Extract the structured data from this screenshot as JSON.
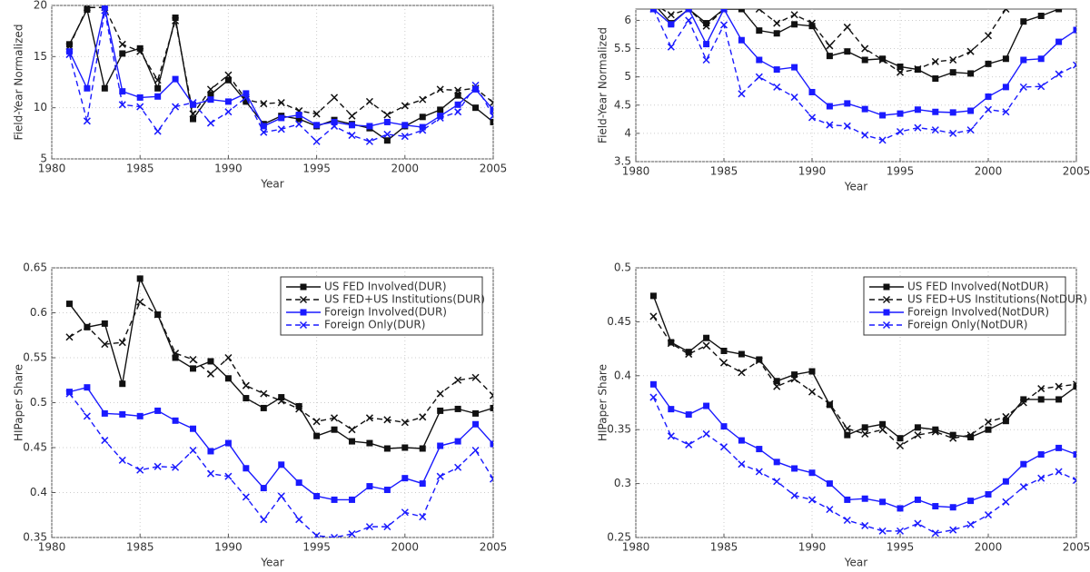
{
  "chart_data": [
    {
      "type": "line",
      "ylabel": "Field-Year Normalized",
      "xlabel": "Year",
      "x": [
        1981,
        1982,
        1983,
        1984,
        1985,
        1986,
        1987,
        1988,
        1989,
        1990,
        1991,
        1992,
        1993,
        1994,
        1995,
        1996,
        1997,
        1998,
        1999,
        2000,
        2001,
        2002,
        2003,
        2004,
        2005
      ],
      "xlim": [
        1980,
        2005
      ],
      "xticks": [
        1980,
        1985,
        1990,
        1995,
        2000,
        2005
      ],
      "ylim": [
        5,
        20
      ],
      "yticks": [
        5,
        10,
        15,
        20
      ],
      "grid": true,
      "series": [
        {
          "color": "#111111",
          "line_style": "solid",
          "marker": "square",
          "values": [
            16.2,
            19.6,
            11.9,
            15.3,
            15.8,
            11.9,
            18.8,
            8.9,
            11.3,
            12.7,
            10.6,
            8.4,
            9.2,
            8.9,
            8.2,
            8.8,
            8.4,
            8.0,
            6.8,
            8.2,
            9.1,
            9.8,
            11.2,
            10.0,
            8.6
          ]
        },
        {
          "color": "#111111",
          "line_style": "dashed",
          "marker": "x",
          "values": [
            16.0,
            19.8,
            19.8,
            16.2,
            15.5,
            12.7,
            18.5,
            9.4,
            11.8,
            13.2,
            10.8,
            10.4,
            10.5,
            9.7,
            9.4,
            11.0,
            9.2,
            10.6,
            9.3,
            10.2,
            10.8,
            11.8,
            11.7,
            11.9,
            10.5
          ]
        },
        {
          "color": "#1a1aff",
          "line_style": "solid",
          "marker": "square",
          "values": [
            15.5,
            11.9,
            19.8,
            11.6,
            11.0,
            11.1,
            12.8,
            10.3,
            10.8,
            10.6,
            11.4,
            8.2,
            9.0,
            9.3,
            8.3,
            8.6,
            8.3,
            8.2,
            8.6,
            8.3,
            8.1,
            9.2,
            10.3,
            11.8,
            9.8
          ]
        },
        {
          "color": "#1a1aff",
          "line_style": "dashed",
          "marker": "x",
          "values": [
            15.2,
            8.7,
            19.5,
            10.3,
            10.1,
            7.7,
            10.1,
            10.5,
            8.5,
            9.6,
            11.0,
            7.6,
            7.9,
            8.4,
            6.7,
            8.2,
            7.3,
            6.7,
            7.4,
            7.2,
            7.8,
            9.0,
            9.6,
            12.2,
            9.2
          ]
        }
      ]
    },
    {
      "type": "line",
      "ylabel": "Field-Year Normalized",
      "xlabel": "Year",
      "x": [
        1981,
        1982,
        1983,
        1984,
        1985,
        1986,
        1987,
        1988,
        1989,
        1990,
        1991,
        1992,
        1993,
        1994,
        1995,
        1996,
        1997,
        1998,
        1999,
        2000,
        2001,
        2002,
        2003,
        2004,
        2005
      ],
      "xlim": [
        1980,
        2005
      ],
      "xticks": [
        1980,
        1985,
        1990,
        1995,
        2000,
        2005
      ],
      "ylim": [
        3.5,
        6.2
      ],
      "yticks": [
        3.5,
        4,
        4.5,
        5,
        5.5,
        6
      ],
      "grid": true,
      "series": [
        {
          "color": "#111111",
          "line_style": "solid",
          "marker": "square",
          "values": [
            6.3,
            5.95,
            6.2,
            5.95,
            6.2,
            6.2,
            5.82,
            5.77,
            5.93,
            5.9,
            5.37,
            5.45,
            5.3,
            5.32,
            5.18,
            5.13,
            4.97,
            5.08,
            5.06,
            5.23,
            5.32,
            5.98,
            6.08,
            6.2,
            6.25
          ]
        },
        {
          "color": "#111111",
          "line_style": "dashed",
          "marker": "x",
          "values": [
            6.3,
            6.1,
            6.2,
            5.9,
            6.2,
            6.3,
            6.2,
            5.95,
            6.1,
            5.95,
            5.55,
            5.88,
            5.5,
            5.3,
            5.08,
            5.14,
            5.27,
            5.3,
            5.45,
            5.73,
            6.2,
            6.3,
            6.3,
            6.3,
            6.3
          ]
        },
        {
          "color": "#1a1aff",
          "line_style": "solid",
          "marker": "square",
          "values": [
            6.2,
            5.93,
            6.2,
            5.58,
            6.2,
            5.65,
            5.3,
            5.13,
            5.17,
            4.73,
            4.48,
            4.53,
            4.43,
            4.32,
            4.35,
            4.42,
            4.38,
            4.37,
            4.4,
            4.65,
            4.82,
            5.3,
            5.32,
            5.62,
            5.83
          ]
        },
        {
          "color": "#1a1aff",
          "line_style": "dashed",
          "marker": "x",
          "values": [
            6.2,
            5.53,
            6.0,
            5.3,
            5.92,
            4.7,
            5.0,
            4.82,
            4.64,
            4.28,
            4.15,
            4.13,
            3.97,
            3.88,
            4.03,
            4.1,
            4.06,
            4.0,
            4.06,
            4.42,
            4.38,
            4.82,
            4.83,
            5.05,
            5.21
          ]
        }
      ]
    },
    {
      "type": "line",
      "ylabel": "HIPaper Share",
      "xlabel": "Year",
      "x": [
        1981,
        1982,
        1983,
        1984,
        1985,
        1986,
        1987,
        1988,
        1989,
        1990,
        1991,
        1992,
        1993,
        1994,
        1995,
        1996,
        1997,
        1998,
        1999,
        2000,
        2001,
        2002,
        2003,
        2004,
        2005
      ],
      "xlim": [
        1980,
        2005
      ],
      "xticks": [
        1980,
        1985,
        1990,
        1995,
        2000,
        2005
      ],
      "ylim": [
        0.35,
        0.65
      ],
      "yticks": [
        0.35,
        0.4,
        0.45,
        0.5,
        0.55,
        0.6,
        0.65
      ],
      "grid": true,
      "legend": "upper right",
      "series": [
        {
          "name": "US FED Involved(DUR)",
          "color": "#111111",
          "line_style": "solid",
          "marker": "square",
          "values": [
            0.61,
            0.584,
            0.588,
            0.521,
            0.638,
            0.598,
            0.55,
            0.538,
            0.546,
            0.527,
            0.505,
            0.494,
            0.506,
            0.496,
            0.463,
            0.47,
            0.457,
            0.455,
            0.449,
            0.45,
            0.449,
            0.491,
            0.493,
            0.488,
            0.494
          ]
        },
        {
          "name": "US FED+US Institutions(DUR)",
          "color": "#111111",
          "line_style": "dashed",
          "marker": "x",
          "values": [
            0.573,
            0.585,
            0.565,
            0.567,
            0.612,
            0.598,
            0.555,
            0.548,
            0.532,
            0.55,
            0.519,
            0.51,
            0.502,
            0.493,
            0.479,
            0.483,
            0.47,
            0.483,
            0.481,
            0.478,
            0.484,
            0.51,
            0.525,
            0.528,
            0.508
          ]
        },
        {
          "name": "Foreign Involved(DUR)",
          "color": "#1a1aff",
          "line_style": "solid",
          "marker": "square",
          "values": [
            0.512,
            0.517,
            0.488,
            0.487,
            0.485,
            0.491,
            0.48,
            0.471,
            0.446,
            0.455,
            0.427,
            0.405,
            0.431,
            0.411,
            0.396,
            0.392,
            0.392,
            0.407,
            0.403,
            0.416,
            0.41,
            0.452,
            0.457,
            0.476,
            0.454
          ]
        },
        {
          "name": "Foreign Only(DUR)",
          "color": "#1a1aff",
          "line_style": "dashed",
          "marker": "x",
          "values": [
            0.51,
            0.485,
            0.458,
            0.436,
            0.425,
            0.429,
            0.428,
            0.447,
            0.421,
            0.418,
            0.395,
            0.37,
            0.396,
            0.37,
            0.352,
            0.35,
            0.354,
            0.362,
            0.362,
            0.378,
            0.373,
            0.418,
            0.428,
            0.447,
            0.415
          ]
        }
      ]
    },
    {
      "type": "line",
      "ylabel": "HIPaper Share",
      "xlabel": "Year",
      "x": [
        1981,
        1982,
        1983,
        1984,
        1985,
        1986,
        1987,
        1988,
        1989,
        1990,
        1991,
        1992,
        1993,
        1994,
        1995,
        1996,
        1997,
        1998,
        1999,
        2000,
        2001,
        2002,
        2003,
        2004,
        2005
      ],
      "xlim": [
        1980,
        2005
      ],
      "xticks": [
        1980,
        1985,
        1990,
        1995,
        2000,
        2005
      ],
      "ylim": [
        0.25,
        0.5
      ],
      "yticks": [
        0.25,
        0.3,
        0.35,
        0.4,
        0.45,
        0.5
      ],
      "grid": true,
      "legend": "upper right",
      "series": [
        {
          "name": "US FED Involved(NotDUR)",
          "color": "#111111",
          "line_style": "solid",
          "marker": "square",
          "values": [
            0.474,
            0.431,
            0.422,
            0.435,
            0.423,
            0.42,
            0.415,
            0.395,
            0.401,
            0.404,
            0.373,
            0.345,
            0.352,
            0.355,
            0.342,
            0.352,
            0.35,
            0.345,
            0.343,
            0.35,
            0.358,
            0.378,
            0.378,
            0.378,
            0.39
          ]
        },
        {
          "name": "US FED+US Institutions(NotDUR)",
          "color": "#111111",
          "line_style": "dashed",
          "marker": "x",
          "values": [
            0.455,
            0.43,
            0.42,
            0.428,
            0.412,
            0.403,
            0.414,
            0.39,
            0.397,
            0.385,
            0.374,
            0.351,
            0.346,
            0.35,
            0.335,
            0.345,
            0.348,
            0.342,
            0.345,
            0.357,
            0.362,
            0.375,
            0.388,
            0.39,
            0.392
          ]
        },
        {
          "name": "Foreign Involved(NotDUR)",
          "color": "#1a1aff",
          "line_style": "solid",
          "marker": "square",
          "values": [
            0.392,
            0.369,
            0.364,
            0.372,
            0.353,
            0.34,
            0.332,
            0.32,
            0.314,
            0.31,
            0.3,
            0.285,
            0.286,
            0.283,
            0.277,
            0.285,
            0.279,
            0.278,
            0.284,
            0.29,
            0.302,
            0.318,
            0.327,
            0.333,
            0.327
          ]
        },
        {
          "name": "Foreign Only(NotDUR)",
          "color": "#1a1aff",
          "line_style": "dashed",
          "marker": "x",
          "values": [
            0.38,
            0.344,
            0.336,
            0.346,
            0.334,
            0.318,
            0.311,
            0.302,
            0.289,
            0.285,
            0.276,
            0.266,
            0.261,
            0.256,
            0.256,
            0.263,
            0.254,
            0.257,
            0.262,
            0.271,
            0.283,
            0.297,
            0.305,
            0.311,
            0.303
          ]
        }
      ]
    }
  ]
}
